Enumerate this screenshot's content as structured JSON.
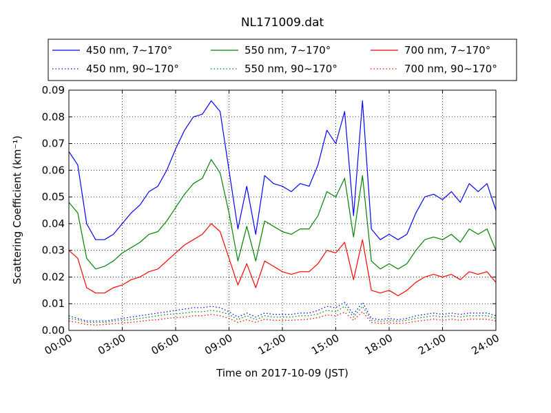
{
  "chart_data": {
    "type": "line",
    "title": "NL171009.dat",
    "xlabel": "Time on 2017-10-09 (JST)",
    "ylabel": "Scattering Coefficient (km⁻¹)",
    "xlim": [
      0,
      24
    ],
    "ylim": [
      0,
      0.09
    ],
    "grid": true,
    "legend_position": "top",
    "x_ticks": [
      {
        "value": 0,
        "label": "00:00"
      },
      {
        "value": 3,
        "label": "03:00"
      },
      {
        "value": 6,
        "label": "06:00"
      },
      {
        "value": 9,
        "label": "09:00"
      },
      {
        "value": 12,
        "label": "12:00"
      },
      {
        "value": 15,
        "label": "15:00"
      },
      {
        "value": 18,
        "label": "18:00"
      },
      {
        "value": 21,
        "label": "21:00"
      },
      {
        "value": 24,
        "label": "24:00"
      }
    ],
    "y_ticks": [
      {
        "value": 0,
        "label": "0.00"
      },
      {
        "value": 0.01,
        "label": "0.01"
      },
      {
        "value": 0.02,
        "label": "0.02"
      },
      {
        "value": 0.03,
        "label": "0.03"
      },
      {
        "value": 0.04,
        "label": "0.04"
      },
      {
        "value": 0.05,
        "label": "0.05"
      },
      {
        "value": 0.06,
        "label": "0.06"
      },
      {
        "value": 0.07,
        "label": "0.07"
      },
      {
        "value": 0.08,
        "label": "0.08"
      },
      {
        "value": 0.09,
        "label": "0.09"
      }
    ],
    "x": [
      0,
      0.5,
      1,
      1.5,
      2,
      2.5,
      3,
      3.5,
      4,
      4.5,
      5,
      5.5,
      6,
      6.5,
      7,
      7.5,
      8,
      8.5,
      9,
      9.5,
      10,
      10.5,
      11,
      11.5,
      12,
      12.5,
      13,
      13.5,
      14,
      14.5,
      15,
      15.5,
      16,
      16.5,
      17,
      17.5,
      18,
      18.5,
      19,
      19.5,
      20,
      20.5,
      21,
      21.5,
      22,
      22.5,
      23,
      23.5,
      24
    ],
    "series": [
      {
        "name": "450 nm, 7∼170°",
        "color": "#0000ff",
        "style": "solid",
        "values": [
          0.067,
          0.062,
          0.04,
          0.034,
          0.034,
          0.036,
          0.04,
          0.044,
          0.047,
          0.052,
          0.054,
          0.06,
          0.068,
          0.075,
          0.08,
          0.081,
          0.086,
          0.082,
          0.06,
          0.038,
          0.054,
          0.036,
          0.058,
          0.055,
          0.054,
          0.052,
          0.055,
          0.054,
          0.062,
          0.075,
          0.07,
          0.082,
          0.043,
          0.086,
          0.038,
          0.034,
          0.036,
          0.034,
          0.036,
          0.044,
          0.05,
          0.051,
          0.049,
          0.052,
          0.048,
          0.055,
          0.052,
          0.055,
          0.045
        ]
      },
      {
        "name": "550 nm, 7∼170°",
        "color": "#008000",
        "style": "solid",
        "values": [
          0.048,
          0.044,
          0.027,
          0.023,
          0.024,
          0.026,
          0.029,
          0.031,
          0.033,
          0.036,
          0.037,
          0.041,
          0.046,
          0.051,
          0.055,
          0.057,
          0.064,
          0.059,
          0.044,
          0.026,
          0.039,
          0.026,
          0.041,
          0.039,
          0.037,
          0.036,
          0.038,
          0.038,
          0.043,
          0.052,
          0.05,
          0.057,
          0.035,
          0.058,
          0.026,
          0.023,
          0.025,
          0.023,
          0.025,
          0.03,
          0.034,
          0.035,
          0.034,
          0.036,
          0.033,
          0.038,
          0.036,
          0.038,
          0.03
        ]
      },
      {
        "name": "700 nm, 7∼170°",
        "color": "#ff0000",
        "style": "solid",
        "values": [
          0.03,
          0.027,
          0.016,
          0.014,
          0.014,
          0.016,
          0.017,
          0.019,
          0.02,
          0.022,
          0.023,
          0.026,
          0.029,
          0.032,
          0.034,
          0.036,
          0.04,
          0.037,
          0.027,
          0.017,
          0.025,
          0.016,
          0.026,
          0.024,
          0.022,
          0.021,
          0.022,
          0.022,
          0.025,
          0.03,
          0.029,
          0.033,
          0.019,
          0.034,
          0.015,
          0.014,
          0.015,
          0.013,
          0.015,
          0.018,
          0.02,
          0.021,
          0.02,
          0.021,
          0.019,
          0.022,
          0.021,
          0.022,
          0.018
        ]
      },
      {
        "name": "450 nm, 90∼170°",
        "color": "#0000ff",
        "style": "dotted",
        "values": [
          0.0055,
          0.0045,
          0.0035,
          0.0035,
          0.0035,
          0.004,
          0.0045,
          0.005,
          0.0055,
          0.006,
          0.0065,
          0.007,
          0.0075,
          0.008,
          0.0085,
          0.0085,
          0.009,
          0.0085,
          0.007,
          0.005,
          0.0065,
          0.005,
          0.0065,
          0.006,
          0.006,
          0.006,
          0.0065,
          0.0065,
          0.0075,
          0.009,
          0.0085,
          0.0105,
          0.006,
          0.0105,
          0.0045,
          0.004,
          0.0045,
          0.004,
          0.0045,
          0.0055,
          0.006,
          0.0065,
          0.006,
          0.0065,
          0.006,
          0.0065,
          0.0065,
          0.0065,
          0.0055
        ]
      },
      {
        "name": "550 nm, 90∼170°",
        "color": "#008000",
        "style": "dotted",
        "values": [
          0.0045,
          0.004,
          0.003,
          0.003,
          0.003,
          0.0035,
          0.0038,
          0.004,
          0.0045,
          0.005,
          0.0055,
          0.006,
          0.0062,
          0.0065,
          0.007,
          0.007,
          0.0075,
          0.007,
          0.006,
          0.004,
          0.0055,
          0.004,
          0.0055,
          0.005,
          0.005,
          0.005,
          0.0055,
          0.0055,
          0.0062,
          0.0075,
          0.007,
          0.009,
          0.005,
          0.009,
          0.0038,
          0.0034,
          0.0037,
          0.0034,
          0.0038,
          0.0045,
          0.005,
          0.0055,
          0.005,
          0.0055,
          0.005,
          0.0055,
          0.0055,
          0.0055,
          0.0045
        ]
      },
      {
        "name": "700 nm, 90∼170°",
        "color": "#ff0000",
        "style": "dotted",
        "values": [
          0.0035,
          0.003,
          0.0022,
          0.002,
          0.0022,
          0.0025,
          0.0028,
          0.003,
          0.0034,
          0.0038,
          0.004,
          0.0045,
          0.0048,
          0.005,
          0.0055,
          0.0055,
          0.006,
          0.0055,
          0.0045,
          0.003,
          0.004,
          0.003,
          0.0042,
          0.0038,
          0.0038,
          0.0038,
          0.004,
          0.0042,
          0.0048,
          0.0058,
          0.0055,
          0.0068,
          0.0038,
          0.007,
          0.003,
          0.0026,
          0.0028,
          0.0026,
          0.0028,
          0.0034,
          0.0038,
          0.0042,
          0.0038,
          0.0042,
          0.0038,
          0.0042,
          0.0042,
          0.0042,
          0.0035
        ]
      }
    ]
  }
}
